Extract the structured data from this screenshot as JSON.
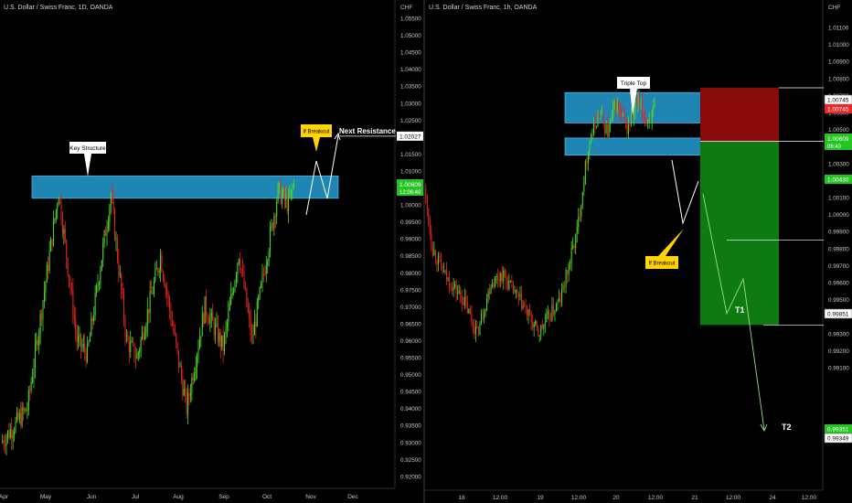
{
  "colors": {
    "bull": "#4cdb28",
    "bear": "#e8261e",
    "zone_fill": "#1f86b3",
    "zone_stroke": "#44b6e6",
    "stop_zone": "#8a0b0b",
    "target_zone": "#0e7a11",
    "callout_white": "#ffffff",
    "callout_yellow": "#ffd400",
    "price_tag_green": "#26c423",
    "price_tag_red": "#e52a2a",
    "axis_text": "#c8c8c8"
  },
  "left_chart": {
    "title": "U.S. Dollar / Swiss Franc, 1D, OANDA",
    "currency": "CHF",
    "yaxis_labels": [
      "1.05500",
      "1.05000",
      "1.04500",
      "1.04000",
      "1.03500",
      "1.03000",
      "1.02500",
      "1.02000",
      "1.01500",
      "1.01000",
      "1.00500",
      "1.00000",
      "0.99500",
      "0.99000",
      "0.98500",
      "0.98000",
      "0.97500",
      "0.97000",
      "0.96500",
      "0.96000",
      "0.95500",
      "0.95000",
      "0.94500",
      "0.94000",
      "0.93500",
      "0.93000",
      "0.92500",
      "0.92000"
    ],
    "xaxis_labels": [
      "Apr",
      "May",
      "Jun",
      "Jul",
      "Aug",
      "Sep",
      "Oct",
      "Nov",
      "Dec"
    ],
    "price_tag_resistance": "1.02027",
    "price_tag_current": "1.00609",
    "price_tag_countdown": "12:06:40",
    "annotations": {
      "key_structure": "Key Structure",
      "if_breakout": "If Breakout",
      "next_resistance": "Next Resistance"
    }
  },
  "right_chart": {
    "title": "U.S. Dollar / Swiss Franc, 1h, OANDA",
    "currency": "CHF",
    "yaxis_labels": [
      "1.01100",
      "1.01000",
      "1.00900",
      "1.00800",
      "1.00700",
      "1.00600",
      "1.00500",
      "1.00400",
      "1.00300",
      "1.00200",
      "1.00100",
      "1.00000",
      "0.99900",
      "0.99800",
      "0.99700",
      "0.99600",
      "0.99500",
      "0.99400",
      "0.99300",
      "0.99200",
      "0.99100"
    ],
    "xaxis_labels": [
      "18",
      "12:00",
      "19",
      "12:00",
      "20",
      "12:00",
      "21",
      "12:00",
      "24",
      "12:00"
    ],
    "price_tag_stop_line": "1.00745",
    "price_tag_stop": "1.00745",
    "price_tag_current": "1.00609",
    "price_tag_countdown": "06:40",
    "price_tag_entry": "1.00430",
    "price_tag_t1": "0.99851",
    "price_tag_t2a": "0.99351",
    "price_tag_t2b": "0.99349",
    "annotations": {
      "triple_top": "Triple Top",
      "if_breakout": "If Breakout",
      "t1": "T1",
      "t2": "T2"
    }
  },
  "chart_data": [
    {
      "type": "candlestick",
      "title": "U.S. Dollar / Swiss Franc, 1D, OANDA",
      "ylabel": "CHF",
      "ylim": [
        0.9175,
        1.0575
      ],
      "x_categories": [
        "Apr",
        "May",
        "Jun",
        "Jul",
        "Aug",
        "Sep",
        "Oct",
        "Nov",
        "Dec"
      ],
      "key_structure_zone": [
        1.0025,
        1.008
      ],
      "next_resistance": 1.02027,
      "last_price": 1.00609,
      "price_swings": [
        {
          "t": 0,
          "p": 0.93
        },
        {
          "t": 20,
          "p": 0.94
        },
        {
          "t": 44,
          "p": 1.004
        },
        {
          "t": 58,
          "p": 0.96
        },
        {
          "t": 66,
          "p": 0.956
        },
        {
          "t": 84,
          "p": 1.003
        },
        {
          "t": 96,
          "p": 0.96
        },
        {
          "t": 104,
          "p": 0.955
        },
        {
          "t": 122,
          "p": 0.985
        },
        {
          "t": 142,
          "p": 0.94
        },
        {
          "t": 156,
          "p": 0.97
        },
        {
          "t": 170,
          "p": 0.958
        },
        {
          "t": 182,
          "p": 0.986
        },
        {
          "t": 192,
          "p": 0.96
        },
        {
          "t": 212,
          "p": 1.004
        },
        {
          "t": 220,
          "p": 1.0
        },
        {
          "t": 224,
          "p": 1.0061
        }
      ]
    },
    {
      "type": "candlestick",
      "title": "U.S. Dollar / Swiss Franc, 1h, OANDA",
      "ylabel": "CHF",
      "ylim": [
        0.991,
        1.0115
      ],
      "x_categories": [
        "18",
        "12:00",
        "19",
        "12:00",
        "20",
        "12:00",
        "21",
        "12:00",
        "24",
        "12:00"
      ],
      "resistance_zone": [
        1.0056,
        1.0069
      ],
      "support_zone": [
        1.0036,
        1.0045
      ],
      "stop_loss": 1.00745,
      "entry": 1.0043,
      "target_1": 0.99851,
      "target_2": 0.99351,
      "last_price": 1.00609,
      "price_swings": [
        {
          "t": 0,
          "p": 1.0015
        },
        {
          "t": 6,
          "p": 0.998
        },
        {
          "t": 14,
          "p": 0.9965
        },
        {
          "t": 28,
          "p": 0.995
        },
        {
          "t": 38,
          "p": 0.993
        },
        {
          "t": 48,
          "p": 0.996
        },
        {
          "t": 56,
          "p": 0.9965
        },
        {
          "t": 64,
          "p": 0.9955
        },
        {
          "t": 72,
          "p": 0.9945
        },
        {
          "t": 82,
          "p": 0.993
        },
        {
          "t": 90,
          "p": 0.994
        },
        {
          "t": 98,
          "p": 0.995
        },
        {
          "t": 110,
          "p": 0.999
        },
        {
          "t": 118,
          "p": 1.004
        },
        {
          "t": 126,
          "p": 1.006
        },
        {
          "t": 132,
          "p": 1.0048
        },
        {
          "t": 138,
          "p": 1.0065
        },
        {
          "t": 146,
          "p": 1.005
        },
        {
          "t": 154,
          "p": 1.0066
        },
        {
          "t": 160,
          "p": 1.0055
        },
        {
          "t": 166,
          "p": 1.0061
        }
      ]
    }
  ]
}
